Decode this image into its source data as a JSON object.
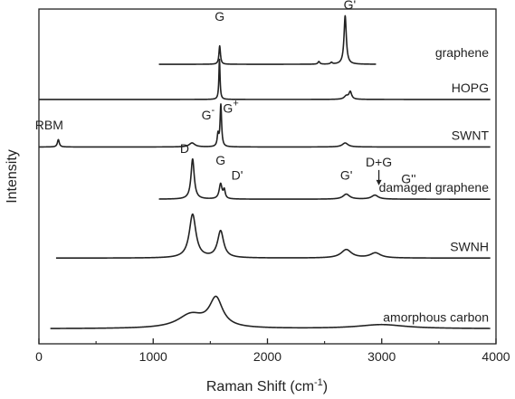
{
  "chart_data": {
    "type": "line",
    "title": "",
    "xlabel_main": "Raman Shift (cm",
    "xlabel_sup": "-1",
    "xlabel_end": ")",
    "ylabel": "Intensity",
    "xlim": [
      0,
      4000
    ],
    "xticks": [
      0,
      1000,
      2000,
      3000,
      4000
    ],
    "grid": false,
    "legend": "none",
    "series": [
      {
        "name": "graphene",
        "range": [
          1050,
          2950
        ],
        "baseline": 0.835,
        "peaks": [
          {
            "x": 1582,
            "h": 0.055,
            "w": 8
          },
          {
            "x": 2450,
            "h": 0.008,
            "w": 10
          },
          {
            "x": 2560,
            "h": 0.005,
            "w": 10
          },
          {
            "x": 2680,
            "h": 0.145,
            "w": 12
          }
        ]
      },
      {
        "name": "HOPG",
        "range": [
          0,
          3950
        ],
        "baseline": 0.73,
        "peaks": [
          {
            "x": 1580,
            "h": 0.12,
            "w": 6
          },
          {
            "x": 2690,
            "h": 0.01,
            "w": 22
          },
          {
            "x": 2725,
            "h": 0.022,
            "w": 14
          }
        ]
      },
      {
        "name": "SWNT",
        "range": [
          0,
          3950
        ],
        "baseline": 0.588,
        "peaks": [
          {
            "x": 170,
            "h": 0.022,
            "w": 10
          },
          {
            "x": 1340,
            "h": 0.012,
            "w": 30
          },
          {
            "x": 1567,
            "h": 0.035,
            "w": 8
          },
          {
            "x": 1592,
            "h": 0.125,
            "w": 8
          },
          {
            "x": 2680,
            "h": 0.012,
            "w": 30
          }
        ]
      },
      {
        "name": "damaged graphene",
        "range": [
          1050,
          3950
        ],
        "baseline": 0.432,
        "peaks": [
          {
            "x": 1345,
            "h": 0.12,
            "w": 17
          },
          {
            "x": 1590,
            "h": 0.045,
            "w": 15
          },
          {
            "x": 1622,
            "h": 0.025,
            "w": 10
          },
          {
            "x": 2690,
            "h": 0.015,
            "w": 35
          },
          {
            "x": 2940,
            "h": 0.012,
            "w": 35
          }
        ]
      },
      {
        "name": "SWNH",
        "range": [
          150,
          3950
        ],
        "baseline": 0.256,
        "peaks": [
          {
            "x": 1345,
            "h": 0.13,
            "w": 35
          },
          {
            "x": 1590,
            "h": 0.08,
            "w": 32
          },
          {
            "x": 2690,
            "h": 0.025,
            "w": 55
          },
          {
            "x": 2945,
            "h": 0.015,
            "w": 55
          }
        ]
      },
      {
        "name": "amorphous carbon",
        "range": [
          100,
          3950
        ],
        "baseline": 0.045,
        "peaks": [
          {
            "x": 1330,
            "h": 0.04,
            "w": 140
          },
          {
            "x": 1550,
            "h": 0.085,
            "w": 70
          },
          {
            "x": 3000,
            "h": 0.012,
            "w": 250
          }
        ]
      }
    ],
    "annotations": [
      {
        "text": "G",
        "x": 1582,
        "y": 0.965
      },
      {
        "text": "G'",
        "x": 2720,
        "y": 1.0
      },
      {
        "text": "RBM",
        "x": 90,
        "y": 0.64
      },
      {
        "text": "G",
        "x": 1480,
        "y": 0.67,
        "sup": "-"
      },
      {
        "text": "G",
        "x": 1680,
        "y": 0.69,
        "sup": "+"
      },
      {
        "text": "D",
        "x": 1275,
        "y": 0.57
      },
      {
        "text": "G",
        "x": 1590,
        "y": 0.535
      },
      {
        "text": "D'",
        "x": 1735,
        "y": 0.49
      },
      {
        "text": "G'",
        "x": 2690,
        "y": 0.49
      },
      {
        "text": "D+G",
        "x": 2975,
        "y": 0.53,
        "arrow": true
      },
      {
        "text": "G''",
        "x": 3235,
        "y": 0.48
      }
    ]
  }
}
